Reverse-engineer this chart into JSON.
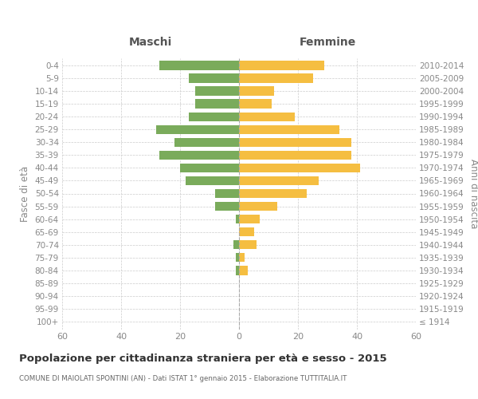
{
  "age_groups": [
    "100+",
    "95-99",
    "90-94",
    "85-89",
    "80-84",
    "75-79",
    "70-74",
    "65-69",
    "60-64",
    "55-59",
    "50-54",
    "45-49",
    "40-44",
    "35-39",
    "30-34",
    "25-29",
    "20-24",
    "15-19",
    "10-14",
    "5-9",
    "0-4"
  ],
  "birth_years": [
    "≤ 1914",
    "1915-1919",
    "1920-1924",
    "1925-1929",
    "1930-1934",
    "1935-1939",
    "1940-1944",
    "1945-1949",
    "1950-1954",
    "1955-1959",
    "1960-1964",
    "1965-1969",
    "1970-1974",
    "1975-1979",
    "1980-1984",
    "1985-1989",
    "1990-1994",
    "1995-1999",
    "2000-2004",
    "2005-2009",
    "2010-2014"
  ],
  "maschi": [
    0,
    0,
    0,
    0,
    1,
    1,
    2,
    0,
    1,
    8,
    8,
    18,
    20,
    27,
    22,
    28,
    17,
    15,
    15,
    17,
    27
  ],
  "femmine": [
    0,
    0,
    0,
    0,
    3,
    2,
    6,
    5,
    7,
    13,
    23,
    27,
    41,
    38,
    38,
    34,
    19,
    11,
    12,
    25,
    29
  ],
  "color_maschi": "#7aab5b",
  "color_femmine": "#f5be41",
  "title": "Popolazione per cittadinanza straniera per età e sesso - 2015",
  "subtitle": "COMUNE DI MAIOLATI SPONTINI (AN) - Dati ISTAT 1° gennaio 2015 - Elaborazione TUTTITALIA.IT",
  "ylabel_left": "Fasce di età",
  "ylabel_right": "Anni di nascita",
  "header_left": "Maschi",
  "header_right": "Femmine",
  "xlim": 60,
  "background_color": "#ffffff",
  "grid_color": "#cccccc"
}
